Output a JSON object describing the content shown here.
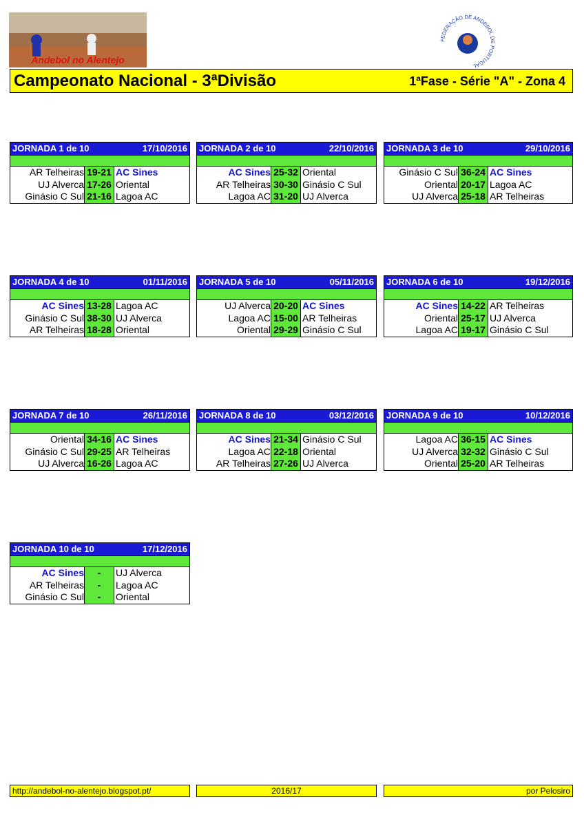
{
  "header": {
    "logo_text": "Andebol no Alentejo",
    "title": "Campeonato Nacional - 3ªDivisão",
    "subtitle": "1ªFase - Série \"A\" - Zona 4",
    "federation": "FEDERAÇÃO DE ANDEBOL DE PORTUGAL"
  },
  "highlight_team": "AC Sines",
  "rounds": [
    {
      "title": "JORNADA 1 de 10",
      "date": "17/10/2016",
      "games": [
        {
          "home": "AR Telheiras",
          "score": "19-21",
          "away": "AC Sines"
        },
        {
          "home": "UJ Alverca",
          "score": "17-26",
          "away": "Oriental"
        },
        {
          "home": "Ginásio C Sul",
          "score": "21-16",
          "away": "Lagoa AC"
        }
      ]
    },
    {
      "title": "JORNADA 2 de 10",
      "date": "22/10/2016",
      "games": [
        {
          "home": "AC Sines",
          "score": "25-32",
          "away": "Oriental"
        },
        {
          "home": "AR Telheiras",
          "score": "30-30",
          "away": "Ginásio C Sul"
        },
        {
          "home": "Lagoa AC",
          "score": "31-20",
          "away": "UJ Alverca"
        }
      ]
    },
    {
      "title": "JORNADA 3 de 10",
      "date": "29/10/2016",
      "games": [
        {
          "home": "Ginásio C Sul",
          "score": "36-24",
          "away": "AC Sines"
        },
        {
          "home": "Oriental",
          "score": "20-17",
          "away": "Lagoa AC"
        },
        {
          "home": "UJ Alverca",
          "score": "25-18",
          "away": "AR Telheiras"
        }
      ]
    },
    {
      "title": "JORNADA 4 de 10",
      "date": "01/11/2016",
      "games": [
        {
          "home": "AC Sines",
          "score": "13-28",
          "away": "Lagoa AC"
        },
        {
          "home": "Ginásio C Sul",
          "score": "38-30",
          "away": "UJ Alverca"
        },
        {
          "home": "AR Telheiras",
          "score": "18-28",
          "away": "Oriental"
        }
      ]
    },
    {
      "title": "JORNADA 5 de 10",
      "date": "05/11/2016",
      "games": [
        {
          "home": "UJ Alverca",
          "score": "20-20",
          "away": "AC Sines"
        },
        {
          "home": "Lagoa AC",
          "score": "15-00",
          "away": "AR Telheiras"
        },
        {
          "home": "Oriental",
          "score": "29-29",
          "away": "Ginásio C Sul"
        }
      ]
    },
    {
      "title": "JORNADA 6 de 10",
      "date": "19/12/2016",
      "games": [
        {
          "home": "AC Sines",
          "score": "14-22",
          "away": "AR Telheiras"
        },
        {
          "home": "Oriental",
          "score": "25-17",
          "away": "UJ Alverca"
        },
        {
          "home": "Lagoa AC",
          "score": "19-17",
          "away": "Ginásio C Sul"
        }
      ]
    },
    {
      "title": "JORNADA 7 de 10",
      "date": "26/11/2016",
      "games": [
        {
          "home": "Oriental",
          "score": "34-16",
          "away": "AC Sines"
        },
        {
          "home": "Ginásio C Sul",
          "score": "29-25",
          "away": "AR Telheiras"
        },
        {
          "home": "UJ Alverca",
          "score": "16-26",
          "away": "Lagoa AC"
        }
      ]
    },
    {
      "title": "JORNADA 8 de 10",
      "date": "03/12/2016",
      "games": [
        {
          "home": "AC Sines",
          "score": "21-34",
          "away": "Ginásio C Sul"
        },
        {
          "home": "Lagoa AC",
          "score": "22-18",
          "away": "Oriental"
        },
        {
          "home": "AR Telheiras",
          "score": "27-26",
          "away": "UJ Alverca"
        }
      ]
    },
    {
      "title": "JORNADA 9 de 10",
      "date": "10/12/2016",
      "games": [
        {
          "home": "Lagoa AC",
          "score": "36-15",
          "away": "AC Sines"
        },
        {
          "home": "UJ Alverca",
          "score": "32-32",
          "away": "Ginásio C Sul"
        },
        {
          "home": "Oriental",
          "score": "25-20",
          "away": "AR Telheiras"
        }
      ]
    },
    {
      "title": "JORNADA 10 de 10",
      "date": "17/12/2016",
      "games": [
        {
          "home": "AC Sines",
          "score": "-",
          "away": "UJ Alverca"
        },
        {
          "home": "AR Telheiras",
          "score": "-",
          "away": "Lagoa AC"
        },
        {
          "home": "Ginásio C Sul",
          "score": "-",
          "away": "Oriental"
        }
      ]
    }
  ],
  "footer": {
    "left": "http://andebol-no-alentejo.blogspot.pt/",
    "center": "2016/17",
    "right": "por Pelosiro"
  }
}
